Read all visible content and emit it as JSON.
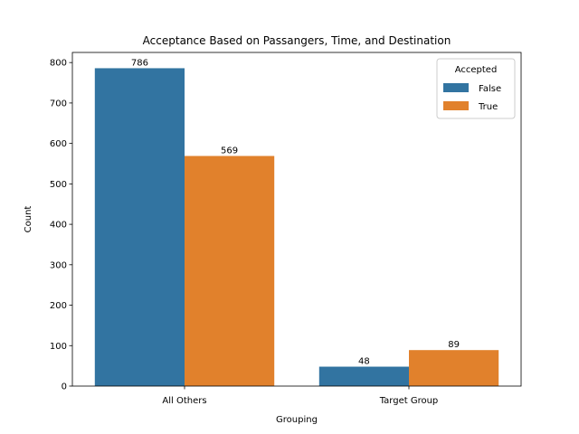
{
  "chart_data": {
    "type": "bar",
    "title": "Acceptance Based on Passangers, Time, and Destination",
    "xlabel": "Grouping",
    "ylabel": "Count",
    "categories": [
      "All Others",
      "Target Group"
    ],
    "series": [
      {
        "name": "False",
        "values": [
          786,
          48
        ],
        "color": "#3274a1"
      },
      {
        "name": "True",
        "values": [
          569,
          89
        ],
        "color": "#e1812c"
      }
    ],
    "ylim": [
      0,
      825
    ],
    "yticks": [
      0,
      100,
      200,
      300,
      400,
      500,
      600,
      700,
      800
    ],
    "legend": {
      "title": "Accepted",
      "placement": "top-right"
    },
    "grid": false
  }
}
